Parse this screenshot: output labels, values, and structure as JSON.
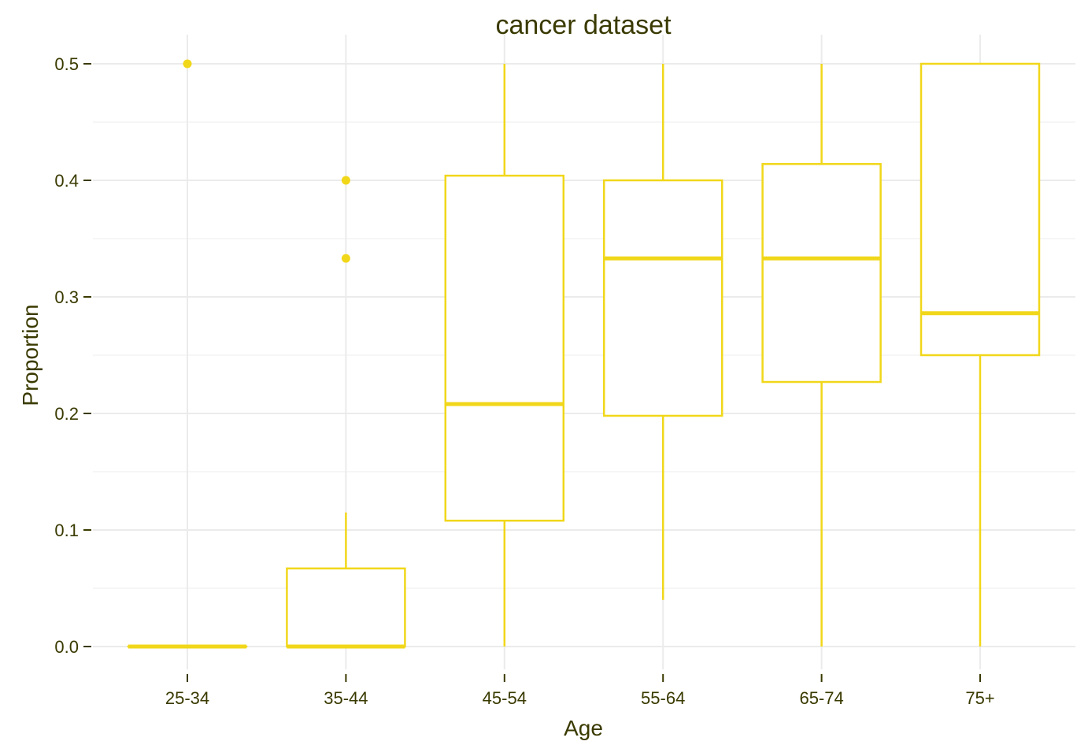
{
  "chart_data": {
    "type": "boxplot",
    "title": "cancer dataset",
    "xlabel": "Age",
    "ylabel": "Proportion",
    "ylim": [
      -0.03,
      0.525
    ],
    "yticks": [
      "0.0",
      "0.1",
      "0.2",
      "0.3",
      "0.4",
      "0.5"
    ],
    "ytick_values": [
      0,
      0.1,
      0.2,
      0.3,
      0.4,
      0.5
    ],
    "categories": [
      "25-34",
      "35-44",
      "45-54",
      "55-64",
      "65-74",
      "75+"
    ],
    "grid": true,
    "colors": {
      "series": "#f1d71a",
      "text": "#3a3a00",
      "grid": "#ebebeb"
    },
    "boxes": [
      {
        "category": "25-34",
        "whisker_low": 0,
        "q1": 0,
        "median": 0,
        "q3": 0,
        "whisker_high": 0,
        "outliers": [
          0.5
        ]
      },
      {
        "category": "35-44",
        "whisker_low": 0,
        "q1": 0,
        "median": 0,
        "q3": 0.067,
        "whisker_high": 0.115,
        "outliers": [
          0.4,
          0.333
        ]
      },
      {
        "category": "45-54",
        "whisker_low": 0,
        "q1": 0.108,
        "median": 0.208,
        "q3": 0.404,
        "whisker_high": 0.5,
        "outliers": []
      },
      {
        "category": "55-64",
        "whisker_low": 0.04,
        "q1": 0.198,
        "median": 0.333,
        "q3": 0.4,
        "whisker_high": 0.5,
        "outliers": []
      },
      {
        "category": "65-74",
        "whisker_low": 0,
        "q1": 0.227,
        "median": 0.333,
        "q3": 0.414,
        "whisker_high": 0.5,
        "outliers": []
      },
      {
        "category": "75+",
        "whisker_low": 0,
        "q1": 0.25,
        "median": 0.286,
        "q3": 0.5,
        "whisker_high": 0.5,
        "outliers": []
      }
    ]
  }
}
